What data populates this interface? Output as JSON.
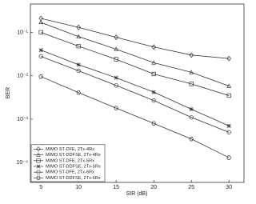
{
  "chart_data": {
    "type": "line",
    "xlabel": "SIR (dB)",
    "ylabel": "BER",
    "log_y": true,
    "grid": false,
    "legend": "lower left",
    "x": [
      5,
      10,
      15,
      20,
      25,
      30
    ],
    "xlim": [
      3.6,
      32
    ],
    "xticks": [
      5,
      10,
      15,
      20,
      25,
      30
    ],
    "ylim": [
      3.5e-05,
      0.45
    ],
    "yticks": [
      {
        "value": 0.1,
        "label": "10⁻¹"
      },
      {
        "value": 0.01,
        "label": "10⁻²"
      },
      {
        "value": 0.001,
        "label": "10⁻³"
      },
      {
        "value": 0.0001,
        "label": "10⁻⁴"
      }
    ],
    "series": [
      {
        "name": "MIMO ST-DFE, 2Tx-4Rx",
        "color": "#333333",
        "marker": "diamond",
        "values": [
          0.21,
          0.13,
          0.077,
          0.046,
          0.03,
          0.025
        ]
      },
      {
        "name": "MIMO ST-DDFSE, 2Tx-4Rx",
        "color": "#333333",
        "marker": "star",
        "values": [
          0.17,
          0.08,
          0.041,
          0.02,
          0.012,
          0.0058
        ]
      },
      {
        "name": "MIMO ST-DFE, 2Tx-5Rx",
        "color": "#333333",
        "marker": "square",
        "values": [
          0.1,
          0.048,
          0.024,
          0.011,
          0.0065,
          0.0035
        ]
      },
      {
        "name": "MIMO ST-DDFSE, 2Tx-5Rx",
        "color": "#333333",
        "marker": "plus",
        "values": [
          0.039,
          0.018,
          0.009,
          0.0042,
          0.0017,
          0.0007
        ]
      },
      {
        "name": "MIMO ST-DFE, 2Tx-6Rx",
        "color": "#333333",
        "marker": "circle",
        "values": [
          0.028,
          0.013,
          0.006,
          0.0027,
          0.0011,
          0.0005
        ]
      },
      {
        "name": "MIMO ST-DDFSE, 2Tx-6Rx",
        "color": "#333333",
        "marker": "hexagon",
        "values": [
          0.0096,
          0.0041,
          0.0018,
          0.0008,
          0.00035,
          0.00013
        ]
      }
    ]
  }
}
